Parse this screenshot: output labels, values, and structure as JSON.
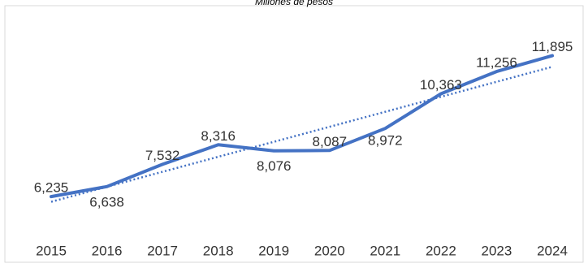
{
  "chart_data": {
    "type": "line",
    "subtitle": "Millones de pesos",
    "categories": [
      "2015",
      "2016",
      "2017",
      "2018",
      "2019",
      "2020",
      "2021",
      "2022",
      "2023",
      "2024"
    ],
    "values": [
      6235,
      6638,
      7532,
      8316,
      8076,
      8087,
      8972,
      10363,
      11256,
      11895
    ],
    "value_labels": [
      "6,235",
      "6,638",
      "7,532",
      "8,316",
      "8,076",
      "8,087",
      "8,972",
      "10,363",
      "11,256",
      "11,895"
    ],
    "trendline": "linear, dotted",
    "ylim": [
      5000,
      12500
    ],
    "grid": false,
    "legend": "none",
    "colors": {
      "line": "#4472C4",
      "trend": "#4472C4",
      "text": "#333333",
      "border": "#d9d9d9"
    }
  }
}
